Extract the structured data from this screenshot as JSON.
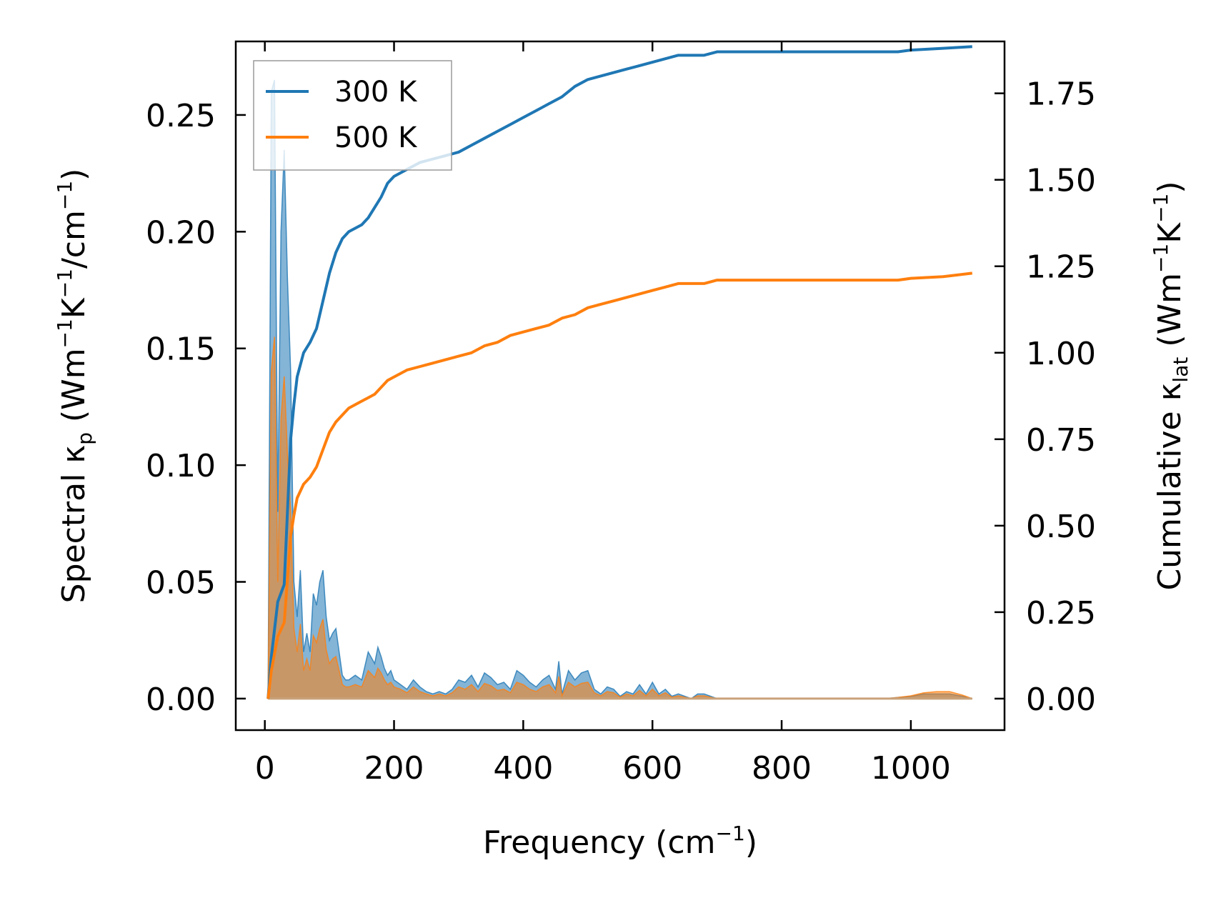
{
  "chart_data": {
    "type": "line",
    "xlabel_main": "Frequency (cm",
    "xlabel_sup": "−1",
    "xlabel_end": ")",
    "ylabel_left": {
      "a": "Spectral κ",
      "a_sub": "p",
      "b": " (Wm",
      "b_sup": "−1",
      "c": "K",
      "c_sup": "−1",
      "d": "/cm",
      "d_sup": "−1",
      "e": ")"
    },
    "ylabel_right": {
      "a": "Cumulative κ",
      "a_sub": "lat",
      "b": " (Wm",
      "b_sup": "−1",
      "c": "K",
      "c_sup": "−1",
      "d": ")"
    },
    "xlim": [
      -45,
      1145
    ],
    "ylim_left": [
      -0.0135,
      0.2815
    ],
    "ylim_right": [
      -0.091,
      1.9
    ],
    "x_ticks": [
      0,
      200,
      400,
      600,
      800,
      1000
    ],
    "x_tick_labels": [
      "0",
      "200",
      "400",
      "600",
      "800",
      "1000"
    ],
    "y_left_ticks": [
      0,
      0.05,
      0.1,
      0.15,
      0.2,
      0.25
    ],
    "y_left_tick_labels": [
      "0.00",
      "0.05",
      "0.10",
      "0.15",
      "0.20",
      "0.25"
    ],
    "y_right_ticks": [
      0,
      0.25,
      0.5,
      0.75,
      1.0,
      1.25,
      1.5,
      1.75
    ],
    "y_right_tick_labels": [
      "0.00",
      "0.25",
      "0.50",
      "0.75",
      "1.00",
      "1.25",
      "1.50",
      "1.75"
    ],
    "legend": {
      "position": "upper-left",
      "entries": [
        "300 K",
        "500 K"
      ]
    },
    "grid": false,
    "series": [
      {
        "name": "300 K",
        "color": "#1f77b4",
        "axis": "right",
        "kind": "cumulative",
        "x": [
          5,
          10,
          20,
          30,
          40,
          45,
          50,
          60,
          70,
          80,
          90,
          100,
          110,
          120,
          130,
          150,
          160,
          170,
          180,
          190,
          200,
          220,
          240,
          260,
          280,
          300,
          320,
          340,
          360,
          380,
          400,
          420,
          440,
          460,
          480,
          500,
          520,
          540,
          560,
          580,
          600,
          620,
          640,
          660,
          680,
          700,
          800,
          900,
          980,
          1000,
          1050,
          1095
        ],
        "y": [
          0.0,
          0.12,
          0.28,
          0.33,
          0.75,
          0.85,
          0.93,
          1.0,
          1.03,
          1.07,
          1.15,
          1.23,
          1.29,
          1.33,
          1.35,
          1.37,
          1.39,
          1.42,
          1.45,
          1.49,
          1.51,
          1.53,
          1.55,
          1.56,
          1.57,
          1.58,
          1.6,
          1.62,
          1.64,
          1.66,
          1.68,
          1.7,
          1.72,
          1.74,
          1.77,
          1.79,
          1.8,
          1.81,
          1.82,
          1.83,
          1.84,
          1.85,
          1.86,
          1.86,
          1.86,
          1.87,
          1.87,
          1.87,
          1.87,
          1.875,
          1.88,
          1.885
        ]
      },
      {
        "name": "500 K",
        "color": "#ff7f0e",
        "axis": "right",
        "kind": "cumulative",
        "x": [
          5,
          10,
          20,
          30,
          40,
          45,
          50,
          60,
          70,
          80,
          90,
          100,
          110,
          120,
          130,
          150,
          160,
          170,
          180,
          190,
          200,
          220,
          240,
          260,
          280,
          300,
          320,
          340,
          360,
          380,
          400,
          420,
          440,
          460,
          480,
          500,
          520,
          540,
          560,
          580,
          600,
          620,
          640,
          660,
          680,
          700,
          800,
          900,
          980,
          1000,
          1050,
          1095
        ],
        "y": [
          0.0,
          0.08,
          0.18,
          0.22,
          0.47,
          0.53,
          0.58,
          0.62,
          0.64,
          0.67,
          0.72,
          0.77,
          0.8,
          0.82,
          0.84,
          0.86,
          0.87,
          0.88,
          0.9,
          0.92,
          0.93,
          0.95,
          0.96,
          0.97,
          0.98,
          0.99,
          1.0,
          1.02,
          1.03,
          1.05,
          1.06,
          1.07,
          1.08,
          1.1,
          1.11,
          1.13,
          1.14,
          1.15,
          1.16,
          1.17,
          1.18,
          1.19,
          1.2,
          1.2,
          1.2,
          1.21,
          1.21,
          1.21,
          1.21,
          1.215,
          1.22,
          1.23
        ]
      },
      {
        "name": "300 K",
        "color": "#1f77b4",
        "axis": "left",
        "kind": "spectral",
        "x": [
          5,
          10,
          15,
          20,
          25,
          30,
          35,
          40,
          45,
          50,
          55,
          60,
          65,
          70,
          75,
          80,
          85,
          90,
          95,
          100,
          105,
          110,
          115,
          120,
          125,
          130,
          140,
          150,
          160,
          170,
          175,
          180,
          185,
          190,
          195,
          200,
          210,
          220,
          230,
          240,
          250,
          260,
          270,
          280,
          290,
          300,
          310,
          320,
          330,
          340,
          350,
          360,
          370,
          380,
          390,
          400,
          410,
          420,
          430,
          440,
          450,
          455,
          460,
          470,
          480,
          490,
          500,
          510,
          520,
          530,
          540,
          550,
          560,
          570,
          580,
          590,
          600,
          610,
          620,
          630,
          640,
          650,
          660,
          670,
          680,
          690,
          700,
          720,
          800,
          900,
          960,
          980,
          1000,
          1020,
          1040,
          1060,
          1080,
          1095
        ],
        "y": [
          0.0,
          0.26,
          0.265,
          0.08,
          0.2,
          0.235,
          0.18,
          0.14,
          0.05,
          0.035,
          0.055,
          0.02,
          0.028,
          0.02,
          0.045,
          0.04,
          0.05,
          0.055,
          0.035,
          0.025,
          0.028,
          0.03,
          0.02,
          0.01,
          0.008,
          0.008,
          0.01,
          0.008,
          0.02,
          0.015,
          0.022,
          0.018,
          0.013,
          0.01,
          0.012,
          0.008,
          0.006,
          0.004,
          0.008,
          0.005,
          0.003,
          0.002,
          0.003,
          0.002,
          0.004,
          0.008,
          0.007,
          0.01,
          0.005,
          0.011,
          0.009,
          0.006,
          0.007,
          0.004,
          0.012,
          0.01,
          0.007,
          0.005,
          0.008,
          0.01,
          0.004,
          0.016,
          0.002,
          0.012,
          0.008,
          0.011,
          0.012,
          0.004,
          0.002,
          0.005,
          0.004,
          0.001,
          0.003,
          0.002,
          0.006,
          0.002,
          0.007,
          0.002,
          0.004,
          0.001,
          0.002,
          0.001,
          0.0,
          0.002,
          0.002,
          0.001,
          0.0,
          0.0,
          0.0,
          0.0,
          0.0,
          0.0005,
          0.001,
          0.002,
          0.002,
          0.002,
          0.001,
          0.0
        ]
      },
      {
        "name": "500 K",
        "color": "#ff7f0e",
        "axis": "left",
        "kind": "spectral",
        "x": [
          5,
          10,
          15,
          20,
          25,
          30,
          35,
          40,
          45,
          50,
          55,
          60,
          65,
          70,
          75,
          80,
          85,
          90,
          95,
          100,
          105,
          110,
          115,
          120,
          125,
          130,
          140,
          150,
          160,
          170,
          175,
          180,
          185,
          190,
          195,
          200,
          210,
          220,
          230,
          240,
          250,
          260,
          270,
          280,
          290,
          300,
          310,
          320,
          330,
          340,
          350,
          360,
          370,
          380,
          390,
          400,
          410,
          420,
          430,
          440,
          450,
          455,
          460,
          470,
          480,
          490,
          500,
          510,
          520,
          530,
          540,
          550,
          560,
          570,
          580,
          590,
          600,
          610,
          620,
          630,
          640,
          650,
          660,
          670,
          680,
          690,
          700,
          720,
          800,
          900,
          960,
          980,
          1000,
          1020,
          1040,
          1060,
          1080,
          1095
        ],
        "y": [
          0.0,
          0.14,
          0.155,
          0.05,
          0.12,
          0.138,
          0.105,
          0.08,
          0.03,
          0.02,
          0.032,
          0.012,
          0.017,
          0.012,
          0.027,
          0.024,
          0.03,
          0.034,
          0.021,
          0.015,
          0.017,
          0.018,
          0.012,
          0.006,
          0.005,
          0.005,
          0.006,
          0.005,
          0.012,
          0.009,
          0.013,
          0.011,
          0.008,
          0.006,
          0.007,
          0.005,
          0.004,
          0.0025,
          0.005,
          0.003,
          0.002,
          0.0012,
          0.002,
          0.0012,
          0.0025,
          0.005,
          0.004,
          0.006,
          0.003,
          0.0065,
          0.0055,
          0.0035,
          0.004,
          0.0025,
          0.007,
          0.006,
          0.004,
          0.003,
          0.005,
          0.006,
          0.0025,
          0.0095,
          0.0012,
          0.007,
          0.005,
          0.0065,
          0.007,
          0.0025,
          0.0012,
          0.003,
          0.0025,
          0.0006,
          0.002,
          0.0012,
          0.0035,
          0.0012,
          0.004,
          0.0012,
          0.0025,
          0.0006,
          0.0012,
          0.0006,
          0.0,
          0.0012,
          0.0012,
          0.0006,
          0.0,
          0.0,
          0.0,
          0.0,
          0.0,
          0.0005,
          0.0012,
          0.0025,
          0.003,
          0.003,
          0.0015,
          0.0
        ]
      }
    ]
  }
}
